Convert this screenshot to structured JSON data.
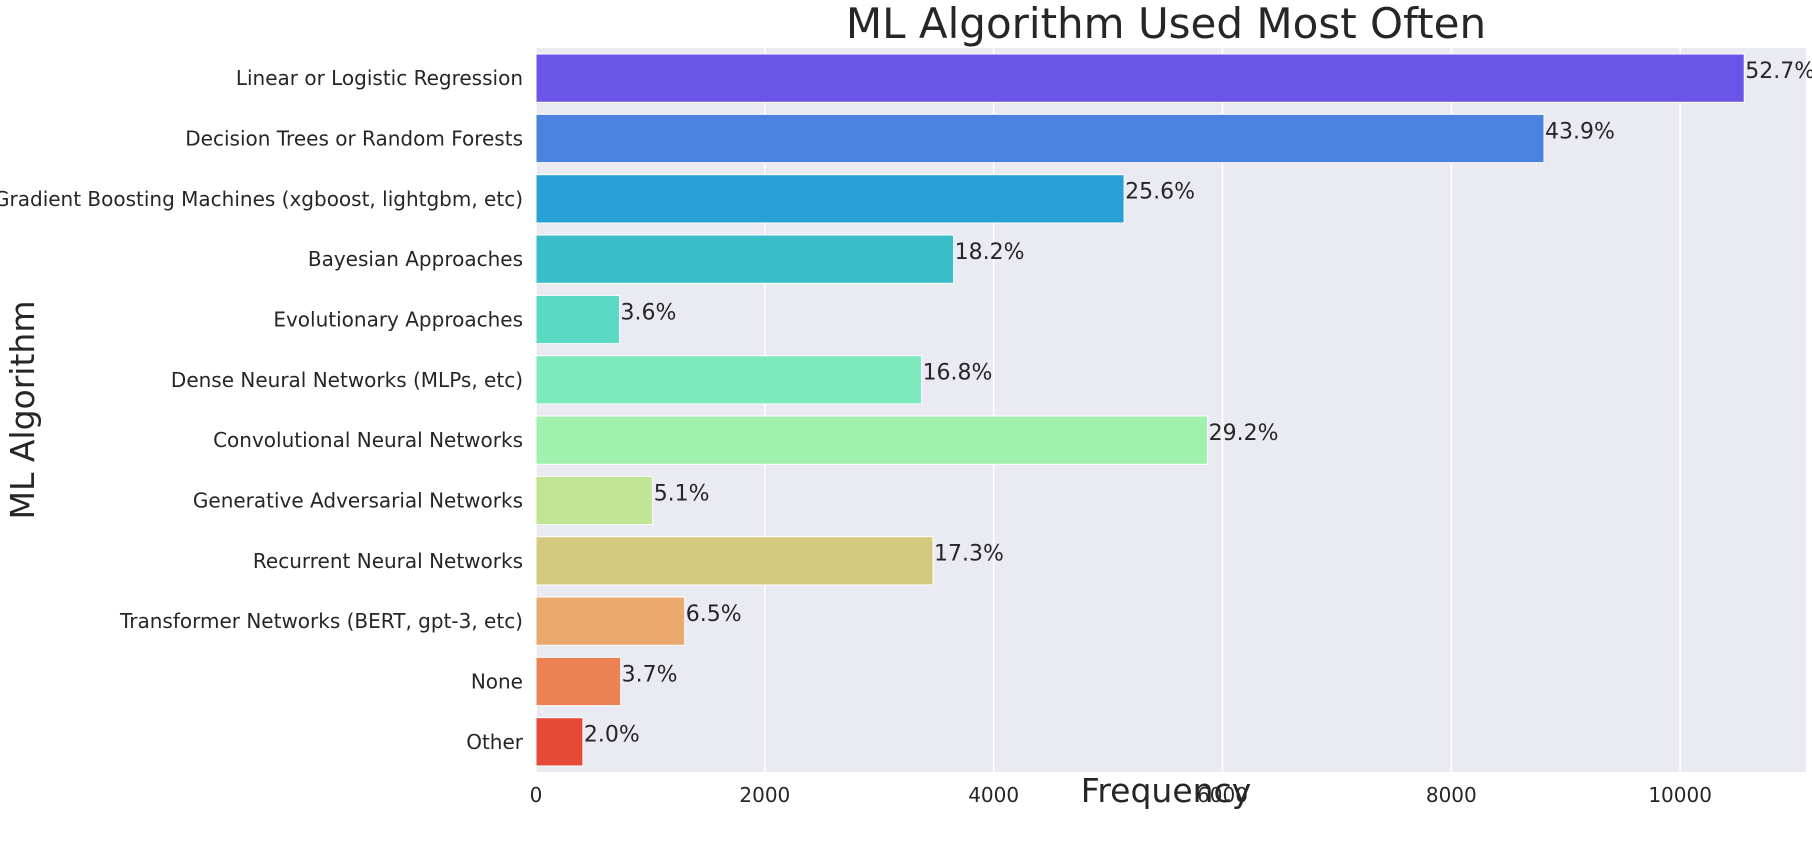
{
  "chart_data": {
    "type": "bar",
    "orientation": "horizontal",
    "title": "ML Algorithm Used Most Often",
    "xlabel": "Frequency",
    "ylabel": "ML Algorithm",
    "xlim": [
      0,
      11100
    ],
    "xticks": [
      0,
      2000,
      4000,
      6000,
      8000,
      10000
    ],
    "grid": true,
    "categories": [
      "Linear or Logistic Regression",
      "Decision Trees or Random Forests",
      "Gradient Boosting Machines (xgboost, lightgbm, etc)",
      "Bayesian Approaches",
      "Evolutionary Approaches",
      "Dense Neural Networks (MLPs, etc)",
      "Convolutional Neural Networks",
      "Generative Adversarial Networks",
      "Recurrent Neural Networks",
      "Transformer Networks (BERT, gpt-3, etc)",
      "None",
      "Other"
    ],
    "values": [
      10560,
      8810,
      5140,
      3650,
      730,
      3370,
      5870,
      1020,
      3470,
      1300,
      740,
      410
    ],
    "data_labels": [
      "52.7%",
      "43.9%",
      "25.6%",
      "18.2%",
      "3.6%",
      "16.8%",
      "29.2%",
      "5.1%",
      "17.3%",
      "6.5%",
      "3.7%",
      "2.0%"
    ],
    "colors": [
      "#6a55e8",
      "#4a82e0",
      "#28a0d6",
      "#38bdc9",
      "#5ad9c4",
      "#7de9bd",
      "#a0f1ae",
      "#bfe494",
      "#d5c97f",
      "#eba96d",
      "#ec8154",
      "#e54a36"
    ],
    "plot_background": "#eaeaf2",
    "grid_color": "#ffffff"
  }
}
